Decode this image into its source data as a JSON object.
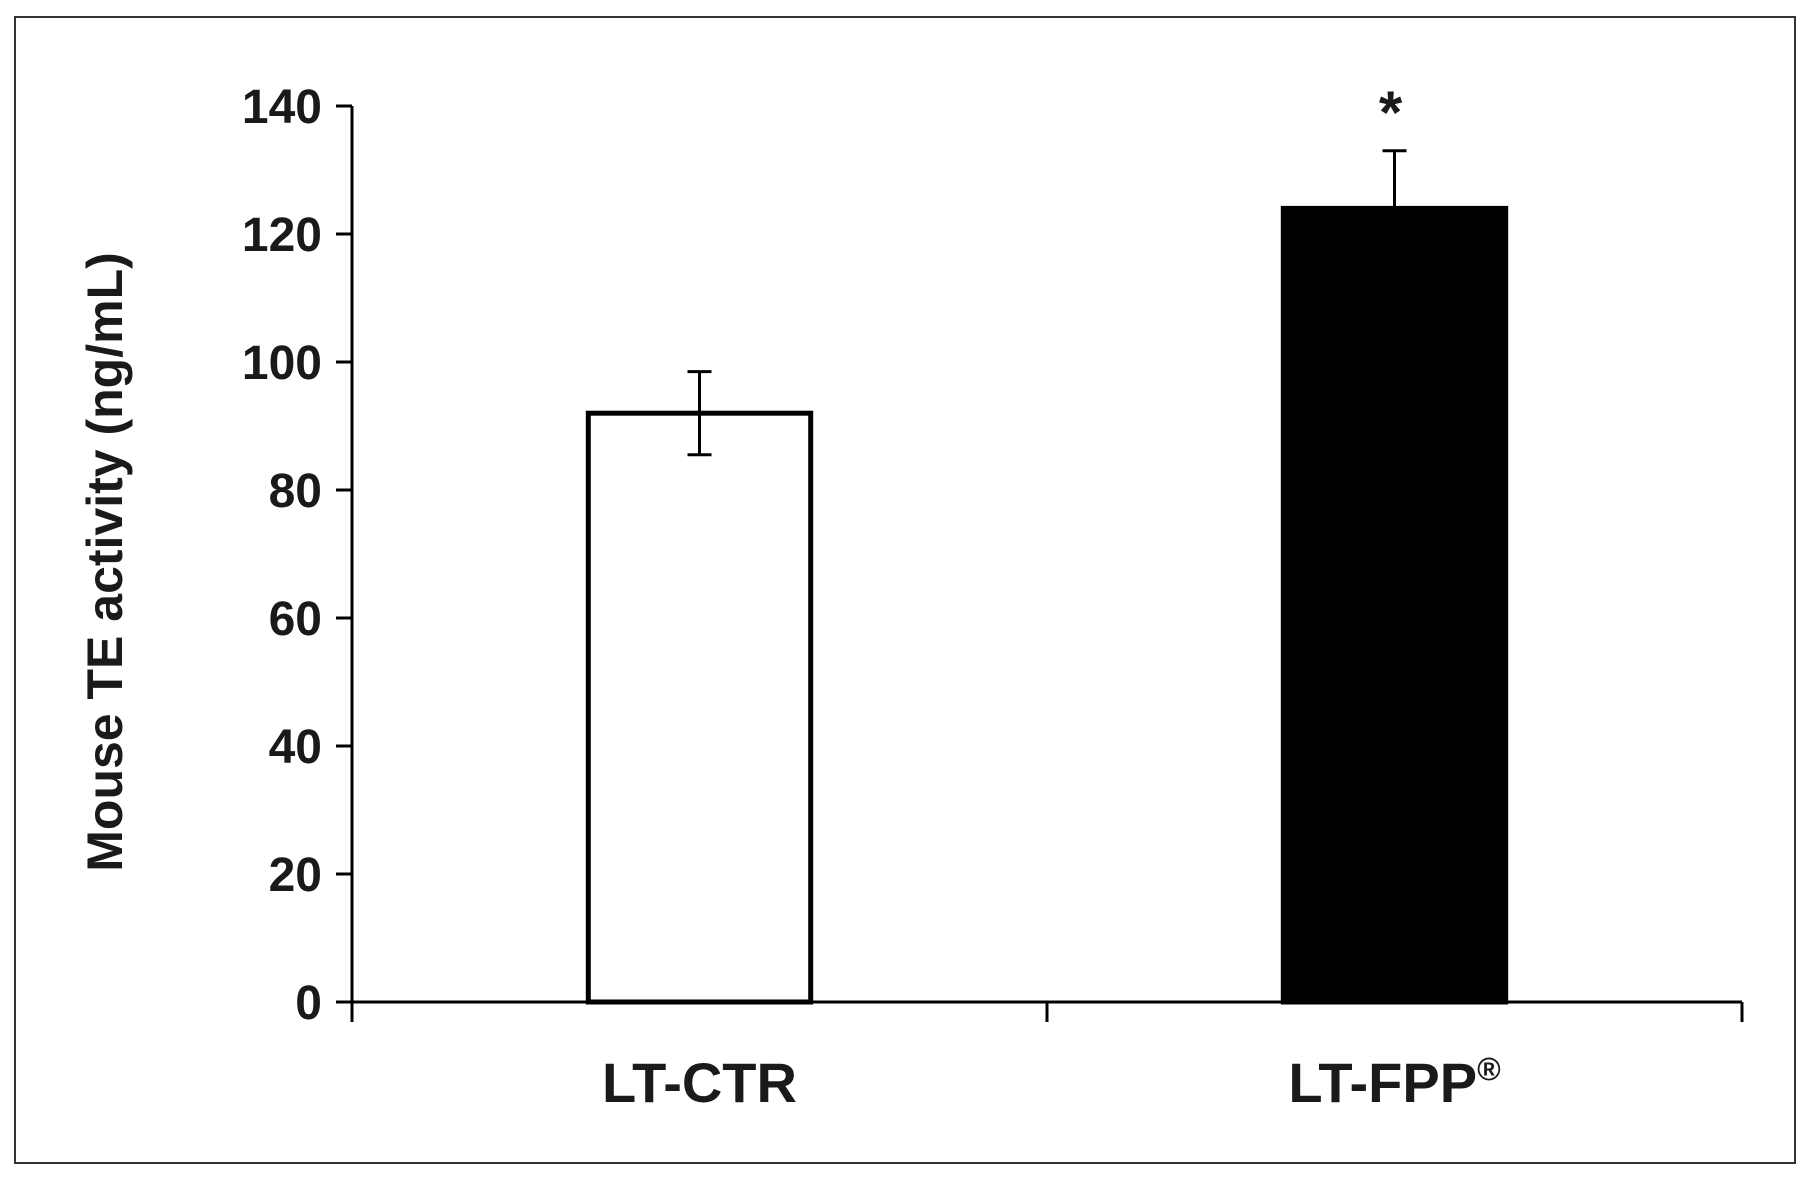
{
  "chart_data": {
    "type": "bar",
    "categories": [
      "LT-CTR",
      "LT-FPP®"
    ],
    "values": [
      92,
      124
    ],
    "errors": [
      6.5,
      9
    ],
    "significance": [
      "",
      "*"
    ],
    "ylabel": "Mouse TE activity (ng/mL)",
    "xlabel": "",
    "ylim": [
      0,
      140
    ],
    "yticks": [
      0,
      20,
      40,
      60,
      80,
      100,
      120,
      140
    ],
    "bar_colors": [
      "#ffffff",
      "#000000"
    ],
    "bar_edge_color": "#000000",
    "grid": false,
    "legend": "none"
  }
}
